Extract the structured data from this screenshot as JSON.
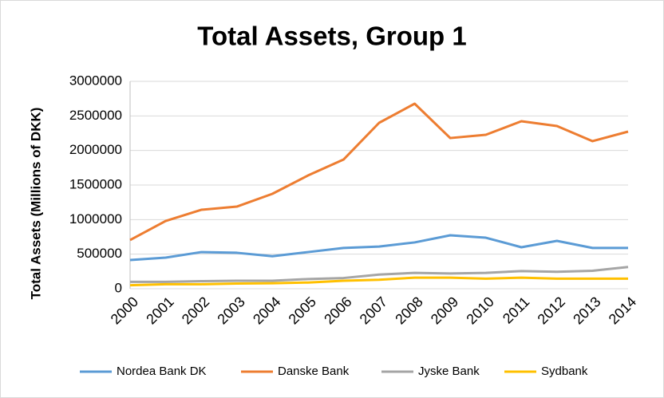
{
  "chart_data": {
    "type": "line",
    "title": "Total Assets, Group 1",
    "y_label": "Total Assets (Millions of DKK)",
    "categories": [
      "2000",
      "2001",
      "2002",
      "2003",
      "2004",
      "2005",
      "2006",
      "2007",
      "2008",
      "2009",
      "2010",
      "2011",
      "2012",
      "2013",
      "2014"
    ],
    "series": [
      {
        "name": "Nordea Bank DK",
        "color": "#5b9bd5",
        "values": [
          415000,
          450000,
          530000,
          520000,
          470000,
          530000,
          590000,
          610000,
          670000,
          773000,
          738000,
          600000,
          692000,
          590000,
          590000
        ]
      },
      {
        "name": "Danske Bank",
        "color": "#ed7d31",
        "values": [
          704000,
          980000,
          1142000,
          1188000,
          1373000,
          1638000,
          1869000,
          2400000,
          2677000,
          2180000,
          2227000,
          2423000,
          2354000,
          2135000,
          2273000
        ]
      },
      {
        "name": "Jyske Bank",
        "color": "#a5a5a5",
        "values": [
          100000,
          100000,
          110000,
          115000,
          115000,
          140000,
          155000,
          205000,
          230000,
          220000,
          230000,
          255000,
          245000,
          260000,
          315000
        ]
      },
      {
        "name": "Sydbank",
        "color": "#ffc000",
        "values": [
          50000,
          65000,
          65000,
          75000,
          80000,
          90000,
          115000,
          130000,
          160000,
          160000,
          145000,
          160000,
          145000,
          145000,
          145000
        ]
      }
    ],
    "ylim": [
      0,
      3000000
    ],
    "yticks": [
      0,
      500000,
      1000000,
      1500000,
      2000000,
      2500000,
      3000000
    ],
    "grid": true,
    "legend": "bottom"
  }
}
